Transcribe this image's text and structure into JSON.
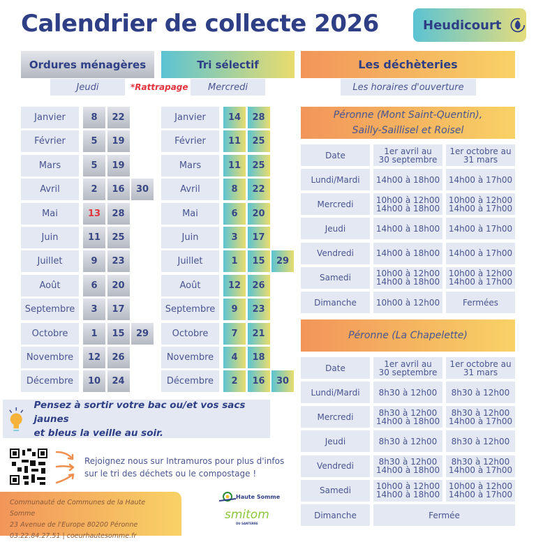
{
  "title": "Calendrier de collecte 2026",
  "commune": "Heudicourt",
  "icon_commune": "leaf-circle-icon",
  "colors": {
    "primary": "#2f3f86",
    "teal": "#5bc3d3",
    "yellow": "#e9dc6d",
    "orange": "#f2955a",
    "red": "#e2343c",
    "panel": "#e3e8f3"
  },
  "ordures": {
    "header": "Ordures ménagères",
    "day": "Jeudi"
  },
  "rattrapage": "*Rattrapage",
  "tri": {
    "header": "Tri sélectif",
    "day": "Mercredi"
  },
  "om_rows": [
    {
      "month": "Janvier",
      "days": [
        "8",
        "22"
      ]
    },
    {
      "month": "Février",
      "days": [
        "5",
        "19"
      ]
    },
    {
      "month": "Mars",
      "days": [
        "5",
        "19"
      ]
    },
    {
      "month": "Avril",
      "days": [
        "2",
        "16",
        "30"
      ]
    },
    {
      "month": "Mai",
      "days": [
        "13",
        "28"
      ],
      "rattrapage_index": 0
    },
    {
      "month": "Juin",
      "days": [
        "11",
        "25"
      ]
    },
    {
      "month": "Juillet",
      "days": [
        "9",
        "23"
      ]
    },
    {
      "month": "Août",
      "days": [
        "6",
        "20"
      ]
    },
    {
      "month": "Septembre",
      "days": [
        "3",
        "17"
      ]
    },
    {
      "month": "Octobre",
      "days": [
        "1",
        "15",
        "29"
      ]
    },
    {
      "month": "Novembre",
      "days": [
        "12",
        "26"
      ]
    },
    {
      "month": "Décembre",
      "days": [
        "10",
        "24"
      ]
    }
  ],
  "tri_rows": [
    {
      "month": "Janvier",
      "days": [
        "14",
        "28"
      ]
    },
    {
      "month": "Février",
      "days": [
        "11",
        "25"
      ]
    },
    {
      "month": "Mars",
      "days": [
        "11",
        "25"
      ]
    },
    {
      "month": "Avril",
      "days": [
        "8",
        "22"
      ]
    },
    {
      "month": "Mai",
      "days": [
        "6",
        "20"
      ]
    },
    {
      "month": "Juin",
      "days": [
        "3",
        "17"
      ]
    },
    {
      "month": "Juillet",
      "days": [
        "1",
        "15",
        "29"
      ]
    },
    {
      "month": "Août",
      "days": [
        "12",
        "26"
      ]
    },
    {
      "month": "Septembre",
      "days": [
        "9",
        "23"
      ]
    },
    {
      "month": "Octobre",
      "days": [
        "7",
        "21"
      ]
    },
    {
      "month": "Novembre",
      "days": [
        "4",
        "18"
      ]
    },
    {
      "month": "Décembre",
      "days": [
        "2",
        "16",
        "30"
      ]
    }
  ],
  "decheteries": {
    "header": "Les déchèteries",
    "subtitle": "Les horaires d'ouverture",
    "sites": [
      {
        "name_lines": [
          "Péronne (Mont Saint-Quentin),",
          "Sailly-Saillisel et Roisel"
        ],
        "columns": [
          "Date",
          "1er avril au\n30 septembre",
          "1er octobre au\n31 mars"
        ],
        "rows": [
          [
            "Lundi/Mardi",
            "14h00 à 18h00",
            "14h00 à 17h00"
          ],
          [
            "Mercredi",
            "10h00 à 12h00\n14h00 à 18h00",
            "10h00 à 12h00\n14h00 à 17h00"
          ],
          [
            "Jeudi",
            "14h00 à 18h00",
            "14h00 à 17h00"
          ],
          [
            "Vendredi",
            "14h00 à 18h00",
            "14h00 à 17h00"
          ],
          [
            "Samedi",
            "10h00 à 12h00\n14h00 à 18h00",
            "10h00 à 12h00\n14h00 à 17h00"
          ],
          [
            "Dimanche",
            "10h00 à 12h00",
            "Fermées"
          ]
        ]
      },
      {
        "name_lines": [
          "Péronne (La Chapelette)"
        ],
        "columns": [
          "Date",
          "1er avril au\n30 septembre",
          "1er octobre au\n31 mars"
        ],
        "rows": [
          [
            "Lundi/Mardi",
            "8h30 à 12h00",
            "8h30 à 12h00"
          ],
          [
            "Mercredi",
            "8h30 à 12h00\n14h00 à 18h00",
            "8h30 à 12h00\n14h00 à 17h00"
          ],
          [
            "Jeudi",
            "8h30 à 12h00",
            "8h30 à 12h00"
          ],
          [
            "Vendredi",
            "8h30 à 12h00\n14h00 à 18h00",
            "8h30 à 12h00\n14h00 à 17h00"
          ],
          [
            "Samedi",
            "10h00 à 12h00\n14h00 à 18h00",
            "10h00 à 12h00\n14h00 à 17h00"
          ],
          [
            "Dimanche",
            "Fermée"
          ]
        ]
      }
    ]
  },
  "tip": {
    "icon": "lightbulb-icon",
    "line1": "Pensez à sortir votre bac ou/et vos sacs jaunes",
    "line2": "et bleus la veille au soir."
  },
  "intramuros": {
    "icon": "qr-code-icon",
    "line1": "Rejoignez nous sur Intramuros pour plus d'infos",
    "line2": "sur le tri des déchets ou le compostage !"
  },
  "footer": {
    "line1": "Communauté de Communes de la Haute Somme",
    "line2": "23 Avenue de l'Europe 80200 Péronne",
    "line3": "03.22.84.27.51 | coeurhautesomme.fr"
  },
  "logos": {
    "haute_somme": "Haute Somme",
    "smitom": "smitom",
    "smitom_sub": "DU SANTERRE"
  }
}
